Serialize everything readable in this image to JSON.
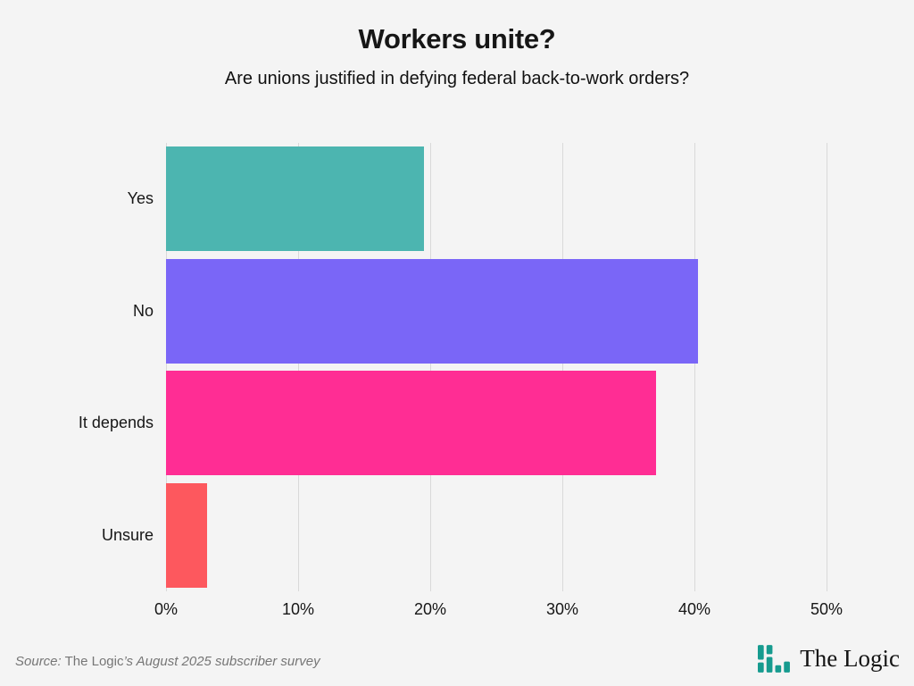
{
  "chart_data": {
    "type": "bar",
    "orientation": "horizontal",
    "title": "Workers unite?",
    "subtitle": "Are unions justified in defying federal back-to-work orders?",
    "categories": [
      "Yes",
      "No",
      "It depends",
      "Unsure"
    ],
    "values": [
      19.5,
      40.3,
      37.1,
      3.1
    ],
    "value_unit": "%",
    "bar_colors": [
      "#4cb5b0",
      "#7a66f7",
      "#ff2d94",
      "#fd585e"
    ],
    "xlim": [
      0,
      50
    ],
    "x_tick_values": [
      0,
      10,
      20,
      30,
      40,
      50
    ],
    "x_tick_labels": [
      "0%",
      "10%",
      "20%",
      "30%",
      "40%",
      "50%"
    ],
    "xlabel": "",
    "ylabel": "",
    "grid": true,
    "legend": false,
    "gridline_color": "#d9d9d9",
    "background_color": "#f4f4f4"
  },
  "footer": {
    "source_prefix": "Source:",
    "source_publisher": " The Logic",
    "source_suffix": "’s August 2025 subscriber survey"
  },
  "logo": {
    "text": "The Logic",
    "mark_icon": "equalizer-bar-chart",
    "mark_color": "#169b8f"
  }
}
